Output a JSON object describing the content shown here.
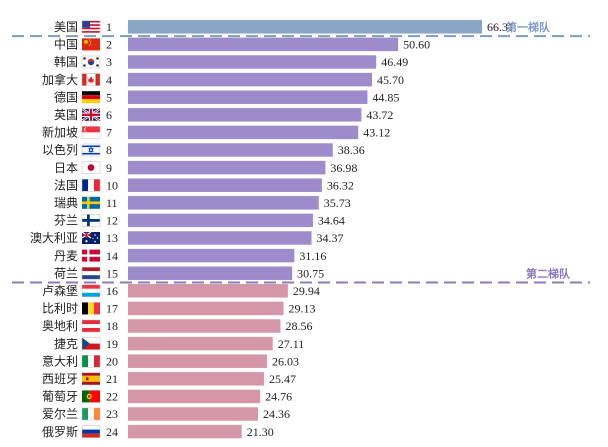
{
  "chart_data": {
    "type": "bar",
    "orientation": "horizontal",
    "xlim": [
      0,
      70
    ],
    "grid": false,
    "legend": "none",
    "rows": [
      {
        "name": "美国",
        "rank": "1",
        "value": 66.31,
        "flag": "us-flag",
        "group": 1
      },
      {
        "name": "中国",
        "rank": "2",
        "value": 50.6,
        "flag": "cn-flag",
        "group": 2
      },
      {
        "name": "韩国",
        "rank": "3",
        "value": 46.49,
        "flag": "kr-flag",
        "group": 2
      },
      {
        "name": "加拿大",
        "rank": "4",
        "value": 45.7,
        "flag": "ca-flag",
        "group": 2
      },
      {
        "name": "德国",
        "rank": "5",
        "value": 44.85,
        "flag": "de-flag",
        "group": 2
      },
      {
        "name": "英国",
        "rank": "6",
        "value": 43.72,
        "flag": "gb-flag",
        "group": 2
      },
      {
        "name": "新加坡",
        "rank": "7",
        "value": 43.12,
        "flag": "sg-flag",
        "group": 2
      },
      {
        "name": "以色列",
        "rank": "8",
        "value": 38.36,
        "flag": "il-flag",
        "group": 2
      },
      {
        "name": "日本",
        "rank": "9",
        "value": 36.98,
        "flag": "jp-flag",
        "group": 2
      },
      {
        "name": "法国",
        "rank": "10",
        "value": 36.32,
        "flag": "fr-flag",
        "group": 2
      },
      {
        "name": "瑞典",
        "rank": "11",
        "value": 35.73,
        "flag": "se-flag",
        "group": 2
      },
      {
        "name": "芬兰",
        "rank": "12",
        "value": 34.64,
        "flag": "fi-flag",
        "group": 2
      },
      {
        "name": "澳大利亚",
        "rank": "13",
        "value": 34.37,
        "flag": "au-flag",
        "group": 2
      },
      {
        "name": "丹麦",
        "rank": "14",
        "value": 31.16,
        "flag": "dk-flag",
        "group": 2
      },
      {
        "name": "荷兰",
        "rank": "15",
        "value": 30.75,
        "flag": "nl-flag",
        "group": 2
      },
      {
        "name": "卢森堡",
        "rank": "16",
        "value": 29.94,
        "flag": "lu-flag",
        "group": 3
      },
      {
        "name": "比利时",
        "rank": "17",
        "value": 29.13,
        "flag": "be-flag",
        "group": 3
      },
      {
        "name": "奥地利",
        "rank": "18",
        "value": 28.56,
        "flag": "at-flag",
        "group": 3
      },
      {
        "name": "捷克",
        "rank": "19",
        "value": 27.11,
        "flag": "cz-flag",
        "group": 3
      },
      {
        "name": "意大利",
        "rank": "20",
        "value": 26.03,
        "flag": "it-flag",
        "group": 3
      },
      {
        "name": "西班牙",
        "rank": "21",
        "value": 25.47,
        "flag": "es-flag",
        "group": 3
      },
      {
        "name": "葡萄牙",
        "rank": "22",
        "value": 24.76,
        "flag": "pt-flag",
        "group": 3
      },
      {
        "name": "爱尔兰",
        "rank": "23",
        "value": 24.36,
        "flag": "ie-flag",
        "group": 3
      },
      {
        "name": "俄罗斯",
        "rank": "24",
        "value": 21.3,
        "flag": "ru-flag",
        "group": 3
      }
    ],
    "annotations": [
      {
        "text": "第一梯队",
        "after_rank": 1,
        "color": "#7e9cc0"
      },
      {
        "text": "第二梯队",
        "after_rank": 15,
        "color": "#8c79c0"
      }
    ],
    "group_colors": {
      "1": "#8aa5c6",
      "2": "#9d8bcc",
      "3": "#d597a8"
    }
  }
}
